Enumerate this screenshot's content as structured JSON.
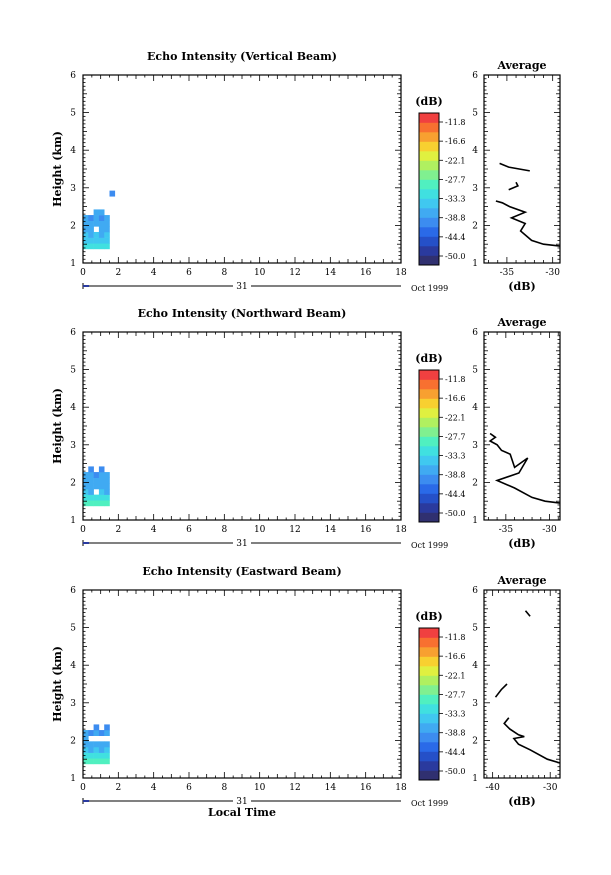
{
  "chart_data": [
    {
      "type": "heatmap",
      "title": "Echo Intensity (Vertical Beam)",
      "ylabel": "Height (km)",
      "xlim": [
        0,
        18
      ],
      "ylim": [
        1,
        6
      ],
      "x_ticks": [
        0,
        2,
        4,
        6,
        8,
        10,
        12,
        14,
        16,
        18
      ],
      "y_ticks": [
        1,
        2,
        3,
        4,
        5,
        6
      ],
      "date_label": "31",
      "month_label": "Oct 1999",
      "cells": [
        {
          "x": 0.15,
          "y": 1.45,
          "v": -32
        },
        {
          "x": 0.45,
          "y": 1.45,
          "v": -32
        },
        {
          "x": 0.75,
          "y": 1.45,
          "v": -32
        },
        {
          "x": 1.05,
          "y": 1.45,
          "v": -32
        },
        {
          "x": 1.35,
          "y": 1.45,
          "v": -32
        },
        {
          "x": 0.15,
          "y": 1.6,
          "v": -33.5
        },
        {
          "x": 0.45,
          "y": 1.6,
          "v": -33.5
        },
        {
          "x": 0.75,
          "y": 1.6,
          "v": -34
        },
        {
          "x": 1.05,
          "y": 1.6,
          "v": -33.5
        },
        {
          "x": 1.35,
          "y": 1.6,
          "v": -33.5
        },
        {
          "x": 0.15,
          "y": 1.75,
          "v": -35
        },
        {
          "x": 0.45,
          "y": 1.75,
          "v": -36
        },
        {
          "x": 0.75,
          "y": 1.75,
          "v": -35
        },
        {
          "x": 1.05,
          "y": 1.75,
          "v": -36
        },
        {
          "x": 1.35,
          "y": 1.75,
          "v": -35
        },
        {
          "x": 0.15,
          "y": 1.9,
          "v": -37
        },
        {
          "x": 0.45,
          "y": 1.9,
          "v": -36
        },
        {
          "x": 1.05,
          "y": 1.9,
          "v": -37
        },
        {
          "x": 1.35,
          "y": 1.9,
          "v": -36
        },
        {
          "x": 0.15,
          "y": 2.05,
          "v": -38
        },
        {
          "x": 0.45,
          "y": 2.05,
          "v": -37
        },
        {
          "x": 0.75,
          "y": 2.05,
          "v": -36
        },
        {
          "x": 1.05,
          "y": 2.05,
          "v": -38
        },
        {
          "x": 1.35,
          "y": 2.05,
          "v": -37
        },
        {
          "x": 0.15,
          "y": 2.2,
          "v": -38
        },
        {
          "x": 0.45,
          "y": 2.2,
          "v": -39
        },
        {
          "x": 0.75,
          "y": 2.2,
          "v": -38
        },
        {
          "x": 1.05,
          "y": 2.2,
          "v": -39
        },
        {
          "x": 1.35,
          "y": 2.2,
          "v": -38
        },
        {
          "x": 0.75,
          "y": 2.35,
          "v": -38
        },
        {
          "x": 1.05,
          "y": 2.35,
          "v": -38
        },
        {
          "x": 1.65,
          "y": 2.85,
          "v": -39
        }
      ],
      "average_profile": {
        "title": "Average",
        "xlabel": "(dB)",
        "xlim": [
          -37.5,
          -29.2
        ],
        "x_ticks": [
          -35,
          -30
        ],
        "y_ticks": [
          1,
          2,
          3,
          4,
          5,
          6
        ],
        "segments": [
          [
            [
              -29.2,
              1.45
            ],
            [
              -31.0,
              1.5
            ],
            [
              -32.3,
              1.6
            ],
            [
              -33.5,
              1.85
            ],
            [
              -33.0,
              2.05
            ],
            [
              -34.5,
              2.2
            ],
            [
              -33.0,
              2.35
            ],
            [
              -34.7,
              2.5
            ],
            [
              -35.5,
              2.6
            ],
            [
              -36.2,
              2.65
            ]
          ],
          [
            [
              -34.8,
              2.95
            ],
            [
              -33.8,
              3.05
            ],
            [
              -34.0,
              3.15
            ]
          ],
          [
            [
              -32.5,
              3.45
            ],
            [
              -34.8,
              3.55
            ],
            [
              -35.8,
              3.65
            ]
          ]
        ]
      }
    },
    {
      "type": "heatmap",
      "title": "Echo Intensity (Northward Beam)",
      "ylabel": "Height (km)",
      "xlim": [
        0,
        18
      ],
      "ylim": [
        1,
        6
      ],
      "x_ticks": [
        0,
        2,
        4,
        6,
        8,
        10,
        12,
        14,
        16,
        18
      ],
      "y_ticks": [
        1,
        2,
        3,
        4,
        5,
        6
      ],
      "date_label": "31",
      "month_label": "Oct 1999",
      "cells": [
        {
          "x": 0.15,
          "y": 1.45,
          "v": -30
        },
        {
          "x": 0.45,
          "y": 1.45,
          "v": -30
        },
        {
          "x": 0.75,
          "y": 1.45,
          "v": -30
        },
        {
          "x": 1.05,
          "y": 1.45,
          "v": -30
        },
        {
          "x": 1.35,
          "y": 1.45,
          "v": -30
        },
        {
          "x": 0.15,
          "y": 1.6,
          "v": -32
        },
        {
          "x": 0.45,
          "y": 1.6,
          "v": -33
        },
        {
          "x": 0.75,
          "y": 1.6,
          "v": -32
        },
        {
          "x": 1.05,
          "y": 1.6,
          "v": -33
        },
        {
          "x": 1.35,
          "y": 1.6,
          "v": -32
        },
        {
          "x": 0.15,
          "y": 1.75,
          "v": -35
        },
        {
          "x": 0.45,
          "y": 1.75,
          "v": -36
        },
        {
          "x": 1.05,
          "y": 1.75,
          "v": -35
        },
        {
          "x": 1.35,
          "y": 1.75,
          "v": -36
        },
        {
          "x": 0.15,
          "y": 1.9,
          "v": -36
        },
        {
          "x": 0.45,
          "y": 1.9,
          "v": -37
        },
        {
          "x": 0.75,
          "y": 1.9,
          "v": -36
        },
        {
          "x": 1.05,
          "y": 1.9,
          "v": -37
        },
        {
          "x": 1.35,
          "y": 1.9,
          "v": -36
        },
        {
          "x": 0.15,
          "y": 2.05,
          "v": -37
        },
        {
          "x": 0.45,
          "y": 2.05,
          "v": -38
        },
        {
          "x": 0.75,
          "y": 2.05,
          "v": -37
        },
        {
          "x": 1.05,
          "y": 2.05,
          "v": -38
        },
        {
          "x": 1.35,
          "y": 2.05,
          "v": -37
        },
        {
          "x": 0.15,
          "y": 2.2,
          "v": -38
        },
        {
          "x": 0.45,
          "y": 2.2,
          "v": -38
        },
        {
          "x": 0.75,
          "y": 2.2,
          "v": -39
        },
        {
          "x": 1.05,
          "y": 2.2,
          "v": -38
        },
        {
          "x": 1.35,
          "y": 2.2,
          "v": -38
        },
        {
          "x": 0.45,
          "y": 2.35,
          "v": -39
        },
        {
          "x": 1.05,
          "y": 2.35,
          "v": -39
        }
      ],
      "average_profile": {
        "title": "Average",
        "xlabel": "(dB)",
        "xlim": [
          -37.5,
          -28.8
        ],
        "x_ticks": [
          -35,
          -30
        ],
        "y_ticks": [
          1,
          2,
          3,
          4,
          5,
          6
        ],
        "segments": [
          [
            [
              -28.8,
              1.45
            ],
            [
              -30.5,
              1.5
            ],
            [
              -32.0,
              1.6
            ],
            [
              -34.0,
              1.85
            ],
            [
              -36.0,
              2.05
            ],
            [
              -33.5,
              2.25
            ],
            [
              -32.5,
              2.65
            ],
            [
              -34.0,
              2.4
            ],
            [
              -34.5,
              2.75
            ],
            [
              -35.5,
              2.85
            ],
            [
              -36.0,
              3.0
            ],
            [
              -36.8,
              3.1
            ],
            [
              -36.2,
              3.2
            ],
            [
              -36.8,
              3.3
            ]
          ]
        ]
      }
    },
    {
      "type": "heatmap",
      "title": "Echo Intensity (Eastward Beam)",
      "ylabel": "Height (km)",
      "xlabel": "Local Time",
      "xlim": [
        0,
        18
      ],
      "ylim": [
        1,
        6
      ],
      "x_ticks": [
        0,
        2,
        4,
        6,
        8,
        10,
        12,
        14,
        16,
        18
      ],
      "y_ticks": [
        1,
        2,
        3,
        4,
        5,
        6
      ],
      "date_label": "31",
      "month_label": "Oct 1999",
      "cells": [
        {
          "x": 0.15,
          "y": 1.45,
          "v": -30
        },
        {
          "x": 0.45,
          "y": 1.45,
          "v": -30
        },
        {
          "x": 0.75,
          "y": 1.45,
          "v": -30
        },
        {
          "x": 1.05,
          "y": 1.45,
          "v": -30
        },
        {
          "x": 1.35,
          "y": 1.45,
          "v": -30
        },
        {
          "x": 0.15,
          "y": 1.6,
          "v": -32
        },
        {
          "x": 0.45,
          "y": 1.6,
          "v": -33
        },
        {
          "x": 0.75,
          "y": 1.6,
          "v": -32
        },
        {
          "x": 1.05,
          "y": 1.6,
          "v": -33
        },
        {
          "x": 1.35,
          "y": 1.6,
          "v": -32
        },
        {
          "x": 0.15,
          "y": 1.75,
          "v": -35
        },
        {
          "x": 0.45,
          "y": 1.75,
          "v": -36
        },
        {
          "x": 0.75,
          "y": 1.75,
          "v": -35
        },
        {
          "x": 1.05,
          "y": 1.75,
          "v": -36
        },
        {
          "x": 1.35,
          "y": 1.75,
          "v": -35
        },
        {
          "x": 0.15,
          "y": 1.9,
          "v": -37
        },
        {
          "x": 0.45,
          "y": 1.9,
          "v": -38
        },
        {
          "x": 0.75,
          "y": 1.9,
          "v": -38
        },
        {
          "x": 1.05,
          "y": 1.9,
          "v": -38
        },
        {
          "x": 1.35,
          "y": 1.9,
          "v": -38
        },
        {
          "x": 0.15,
          "y": 2.05,
          "v": -38
        },
        {
          "x": 0.15,
          "y": 2.2,
          "v": -38
        },
        {
          "x": 0.45,
          "y": 2.2,
          "v": -39
        },
        {
          "x": 0.75,
          "y": 2.2,
          "v": -38
        },
        {
          "x": 1.05,
          "y": 2.2,
          "v": -39
        },
        {
          "x": 1.35,
          "y": 2.2,
          "v": -38
        },
        {
          "x": 0.75,
          "y": 2.35,
          "v": -39
        },
        {
          "x": 1.35,
          "y": 2.35,
          "v": -39
        }
      ],
      "average_profile": {
        "title": "Average",
        "xlabel": "(dB)",
        "xlim": [
          -41.5,
          -28.3
        ],
        "x_ticks": [
          -40,
          -30
        ],
        "y_ticks": [
          1,
          2,
          3,
          4,
          5,
          6
        ],
        "segments": [
          [
            [
              -28.3,
              1.4
            ],
            [
              -30.5,
              1.5
            ],
            [
              -33.5,
              1.75
            ],
            [
              -35.5,
              1.9
            ],
            [
              -36.3,
              2.05
            ],
            [
              -34.5,
              2.1
            ],
            [
              -35.5,
              2.15
            ],
            [
              -37.0,
              2.3
            ],
            [
              -38.0,
              2.45
            ],
            [
              -37.2,
              2.6
            ]
          ],
          [
            [
              -39.5,
              3.15
            ],
            [
              -38.5,
              3.35
            ],
            [
              -37.5,
              3.5
            ]
          ],
          [
            [
              -33.5,
              5.3
            ],
            [
              -34.3,
              5.45
            ]
          ]
        ]
      }
    }
  ],
  "colorbar": {
    "unit": "(dB)",
    "labels": [
      "-11.8",
      "-16.6",
      "-22.1",
      "-27.7",
      "-33.3",
      "-38.8",
      "-44.4",
      "-50.0"
    ],
    "min": -50.0,
    "max": -11.8,
    "colors": [
      "#303070",
      "#2a3a9e",
      "#2550c8",
      "#2a6ae8",
      "#3c8cf0",
      "#40aaf2",
      "#40c8f0",
      "#40e0e0",
      "#50f0c0",
      "#80f090",
      "#b0f060",
      "#e0f040",
      "#f8d030",
      "#f8a030",
      "#f87030",
      "#f04040"
    ]
  }
}
